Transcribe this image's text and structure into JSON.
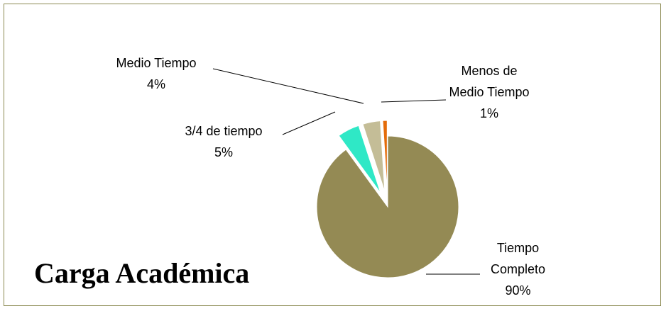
{
  "chart_data": {
    "type": "pie",
    "title": "Carga Académica",
    "categories": [
      "Tiempo Completo",
      "3/4 de tiempo",
      "Medio Tiempo",
      "Menos de Medio Tiempo"
    ],
    "values": [
      90,
      5,
      4,
      1
    ],
    "value_labels": [
      "90%",
      "5%",
      "4%",
      "1%"
    ],
    "colors": [
      "#948a54",
      "#2fe8c6",
      "#c4bd97",
      "#e46c0a"
    ]
  }
}
